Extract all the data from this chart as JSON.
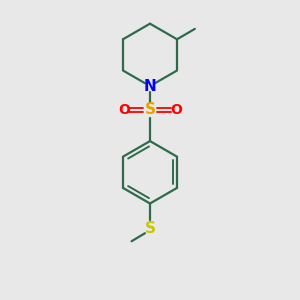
{
  "bg_color": "#e8e8e8",
  "bond_color": "#2d6b4a",
  "N_color": "#0000ff",
  "S_sulfonyl_color": "#e8a000",
  "O_color": "#ff0000",
  "S_thio_color": "#c8c800",
  "line_width": 1.6,
  "inner_lw": 1.4,
  "figsize": [
    3.0,
    3.0
  ],
  "dpi": 100,
  "xlim": [
    0,
    10
  ],
  "ylim": [
    0,
    10
  ]
}
